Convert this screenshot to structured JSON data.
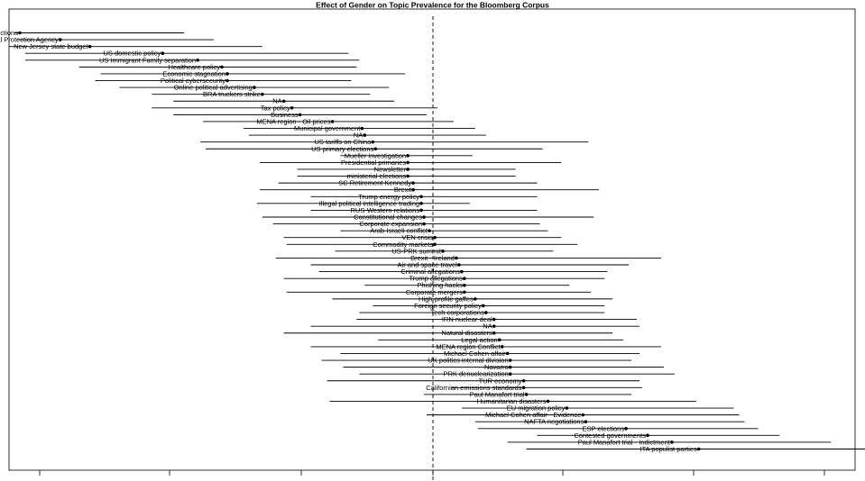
{
  "chart_data": {
    "type": "scatter",
    "title": "Effect of Gender on Topic Prevalence for the Bloomberg Corpus",
    "xlabel": "",
    "ylabel": "",
    "xlim": [
      -0.0152,
      0.0162
    ],
    "zero_line": 0,
    "grid": false,
    "legend": "none",
    "series": [
      {
        "categories": [
          "MYS elections",
          "Environmental Protection Agency",
          "New Jersey state budget",
          "US domestic policy",
          "US Immigrant Family separation",
          "Healthcare policy",
          "Economic stagnation",
          "Political cybersecurity",
          "Online political advertising",
          "BRA truckers strike",
          "NA",
          "Tax policy",
          "Business",
          "MENA region - Oil prices",
          "Municipal government",
          "NA",
          "US tariffs on China",
          "US primary elections",
          "Mueller investigation",
          "Presidential primaries",
          "Newsletter",
          "ministerial elections",
          "SC Retirement Kennedy",
          "Brexit",
          "Trump energy policy",
          "Illegal political intelligence trading",
          "RUS-Western relations",
          "Constitutional changes",
          "Corporate expansion",
          "Arab-Israeli conflict",
          "VEN crisis",
          "Commodity markets",
          "US-PRK summit",
          "Brexit - Ireland",
          "Air and space travel",
          "Criminal allegations",
          "Trump allegations",
          "Phishing hacks",
          "Corporate mergers",
          "High-profile gaffes",
          "Foreign security policy",
          "Tech corporations",
          "IRN nuclear deal",
          "NA",
          "Natural disasters",
          "Legal action",
          "MENA region Conflict",
          "Michael Cohen affair",
          "UK politics internal division",
          "Navarro",
          "PRK denuclearization",
          "TUR economy",
          "Californian emissions standards",
          "Paul Manafort trial",
          "Humanitarian disasters",
          "EU migration policy",
          "Michael Cohen affair - Evidence",
          "NAFTA negotiations",
          "ESP elections",
          "Contested governments",
          "Paul Manafort trial - Indictment",
          "ITA populist parties"
        ],
        "estimates": [
          -0.0148,
          -0.0133,
          -0.0122,
          -0.0095,
          -0.0082,
          -0.0073,
          -0.0071,
          -0.0071,
          -0.0061,
          -0.0058,
          -0.005,
          -0.0047,
          -0.0044,
          -0.0032,
          -0.0021,
          -0.002,
          -0.0017,
          -0.0016,
          -0.0004,
          -0.0004,
          -0.0004,
          -0.0004,
          -0.0002,
          -0.0002,
          0.0001,
          0.0001,
          0.0001,
          0.0002,
          0.0002,
          0.0004,
          0.0006,
          0.0006,
          0.0009,
          0.0014,
          0.0015,
          0.0016,
          0.0017,
          0.0017,
          0.0017,
          0.0021,
          0.0024,
          0.0025,
          0.0028,
          0.0028,
          0.0028,
          0.003,
          0.0031,
          0.0033,
          0.0034,
          0.0034,
          0.0034,
          0.0039,
          0.0039,
          0.004,
          0.0048,
          0.0055,
          0.0061,
          0.0062,
          0.0077,
          0.0085,
          0.0094,
          0.0104
        ],
        "lower": [
          -0.015,
          -0.0149,
          -0.0152,
          -0.0146,
          -0.0146,
          -0.0126,
          -0.0118,
          -0.012,
          -0.0111,
          -0.0099,
          -0.0091,
          -0.0099,
          -0.0091,
          -0.008,
          -0.0065,
          -0.0063,
          -0.0081,
          -0.0079,
          -0.0029,
          -0.0059,
          -0.0045,
          -0.0045,
          -0.0052,
          -0.0059,
          -0.004,
          -0.006,
          -0.004,
          -0.0058,
          -0.0054,
          -0.0029,
          -0.005,
          -0.0049,
          -0.0031,
          -0.0053,
          -0.004,
          -0.0037,
          -0.005,
          -0.002,
          -0.0049,
          -0.0032,
          -0.0017,
          -0.0022,
          -0.0023,
          -0.004,
          -0.005,
          -0.0015,
          -0.004,
          -0.0029,
          -0.0036,
          -0.0028,
          -0.0022,
          -0.0034,
          0.0012,
          0.0002,
          -0.0033,
          0.0016,
          0.0003,
          0.0021,
          0.0022,
          0.0044,
          0.0033,
          0.004
        ],
        "upper": [
          -0.0087,
          -0.0076,
          -0.0058,
          -0.0026,
          -0.0022,
          -0.0023,
          -0.0005,
          -0.0025,
          -0.0011,
          -0.0018,
          -0.0009,
          0.0007,
          0.0003,
          0.0013,
          0.0021,
          0.0025,
          0.0063,
          0.0046,
          0.002,
          0.0053,
          0.0036,
          0.0036,
          0.0044,
          0.0067,
          0.0044,
          0.0019,
          0.0044,
          0.0065,
          0.0045,
          0.0048,
          0.0053,
          0.0059,
          0.005,
          0.009,
          0.0078,
          0.007,
          0.0069,
          0.0056,
          0.0064,
          0.0072,
          0.0069,
          0.0069,
          0.0081,
          0.0082,
          0.0072,
          0.0076,
          0.009,
          0.0082,
          0.0079,
          0.0091,
          0.0095,
          0.0082,
          0.0083,
          0.0079,
          0.0103,
          0.0117,
          0.0119,
          0.0121,
          0.0126,
          0.0134,
          0.0153,
          0.0178
        ]
      }
    ]
  }
}
